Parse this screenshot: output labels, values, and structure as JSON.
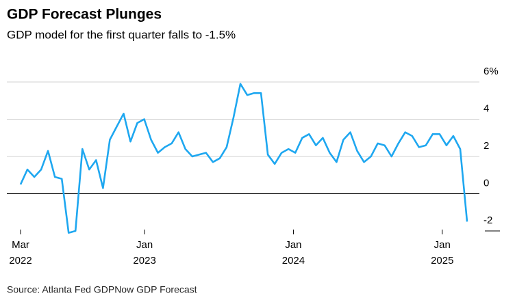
{
  "chart_data": {
    "type": "line",
    "title": "GDP Forecast Plunges",
    "subtitle": "GDP model for the first quarter falls to -1.5%",
    "source": "Source: Atlanta Fed GDPNow GDP Forecast",
    "xlim": [
      "2022-03",
      "2025-03"
    ],
    "xticks": [
      {
        "value": "2022-03",
        "label": [
          "Mar",
          "2022"
        ]
      },
      {
        "value": "2023-01",
        "label": [
          "Jan",
          "2023"
        ]
      },
      {
        "value": "2024-01",
        "label": [
          "Jan",
          "2024"
        ]
      },
      {
        "value": "2025-01",
        "label": [
          "Jan",
          "2025"
        ]
      }
    ],
    "ylim": [
      -2,
      6
    ],
    "yticks": [
      {
        "value": 6,
        "label": "6%"
      },
      4,
      2,
      0,
      -2
    ],
    "grid": true,
    "series": [
      {
        "color": "#1ea7f0",
        "values": [
          0.5,
          1.3,
          0.9,
          1.3,
          2.3,
          0.9,
          0.8,
          -2.1,
          -2.0,
          2.4,
          1.3,
          1.8,
          0.3,
          2.9,
          3.6,
          4.3,
          2.8,
          3.8,
          4.0,
          2.9,
          2.2,
          2.5,
          2.7,
          3.3,
          2.4,
          2.0,
          2.1,
          2.2,
          1.7,
          1.9,
          2.5,
          4.1,
          5.9,
          5.3,
          5.4,
          5.4,
          2.1,
          1.6,
          2.2,
          2.4,
          2.2,
          3.0,
          3.2,
          2.6,
          3.0,
          2.2,
          1.7,
          2.9,
          3.3,
          2.3,
          1.7,
          2.0,
          2.7,
          2.6,
          2.0,
          2.7,
          3.3,
          3.1,
          2.5,
          2.6,
          3.2,
          3.2,
          2.6,
          3.1,
          2.4,
          -1.5
        ]
      }
    ]
  }
}
